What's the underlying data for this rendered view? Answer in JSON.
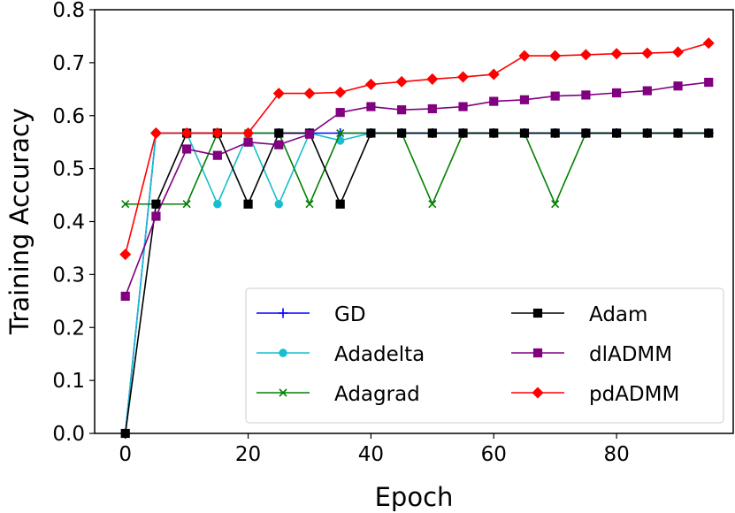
{
  "chart_data": {
    "type": "line",
    "title": "",
    "xlabel": "Epoch",
    "ylabel": "Training Accuracy",
    "xlim": [
      -5,
      99
    ],
    "ylim": [
      0.0,
      0.8
    ],
    "xticks": [
      0,
      20,
      40,
      60,
      80
    ],
    "xtick_labels": [
      "0",
      "20",
      "40",
      "60",
      "80"
    ],
    "yticks": [
      0.0,
      0.1,
      0.2,
      0.3,
      0.4,
      0.5,
      0.6,
      0.7,
      0.8
    ],
    "ytick_labels": [
      "0.0",
      "0.1",
      "0.2",
      "0.3",
      "0.4",
      "0.5",
      "0.6",
      "0.7",
      "0.8"
    ],
    "grid": false,
    "legend_position": "lower-right",
    "x": [
      0,
      5,
      10,
      15,
      20,
      25,
      30,
      35,
      40,
      45,
      50,
      55,
      60,
      65,
      70,
      75,
      80,
      85,
      90,
      95
    ],
    "series": [
      {
        "name": "GD",
        "color": "#0000ff",
        "marker": "plus",
        "values": [
          0.0,
          0.567,
          0.567,
          0.567,
          0.567,
          0.567,
          0.567,
          0.567,
          0.567,
          0.567,
          0.567,
          0.567,
          0.567,
          0.567,
          0.567,
          0.567,
          0.567,
          0.567,
          0.567,
          0.567
        ]
      },
      {
        "name": "Adadelta",
        "color": "#17becf",
        "marker": "circle",
        "values": [
          0.0,
          0.567,
          0.567,
          0.433,
          0.567,
          0.433,
          0.567,
          0.553,
          0.567,
          0.567,
          0.567,
          0.567,
          0.567,
          0.567,
          0.567,
          0.567,
          0.567,
          0.567,
          0.567,
          0.567
        ]
      },
      {
        "name": "Adagrad",
        "color": "#008000",
        "marker": "x",
        "values": [
          0.433,
          0.433,
          0.433,
          0.567,
          0.567,
          0.567,
          0.433,
          0.567,
          0.567,
          0.567,
          0.433,
          0.567,
          0.567,
          0.567,
          0.433,
          0.567,
          0.567,
          0.567,
          0.567,
          0.567
        ]
      },
      {
        "name": "Adam",
        "color": "#000000",
        "marker": "square",
        "values": [
          0.0,
          0.433,
          0.567,
          0.567,
          0.433,
          0.567,
          0.567,
          0.433,
          0.567,
          0.567,
          0.567,
          0.567,
          0.567,
          0.567,
          0.567,
          0.567,
          0.567,
          0.567,
          0.567,
          0.567
        ]
      },
      {
        "name": "dlADMM",
        "color": "#800080",
        "marker": "square",
        "values": [
          0.259,
          0.41,
          0.537,
          0.525,
          0.55,
          0.545,
          0.565,
          0.606,
          0.617,
          0.611,
          0.613,
          0.617,
          0.627,
          0.63,
          0.637,
          0.639,
          0.643,
          0.647,
          0.656,
          0.663
        ]
      },
      {
        "name": "pdADMM",
        "color": "#ff0000",
        "marker": "diamond",
        "values": [
          0.338,
          0.567,
          0.567,
          0.567,
          0.567,
          0.642,
          0.642,
          0.644,
          0.659,
          0.664,
          0.669,
          0.673,
          0.678,
          0.713,
          0.713,
          0.715,
          0.717,
          0.718,
          0.72,
          0.737
        ]
      }
    ]
  }
}
